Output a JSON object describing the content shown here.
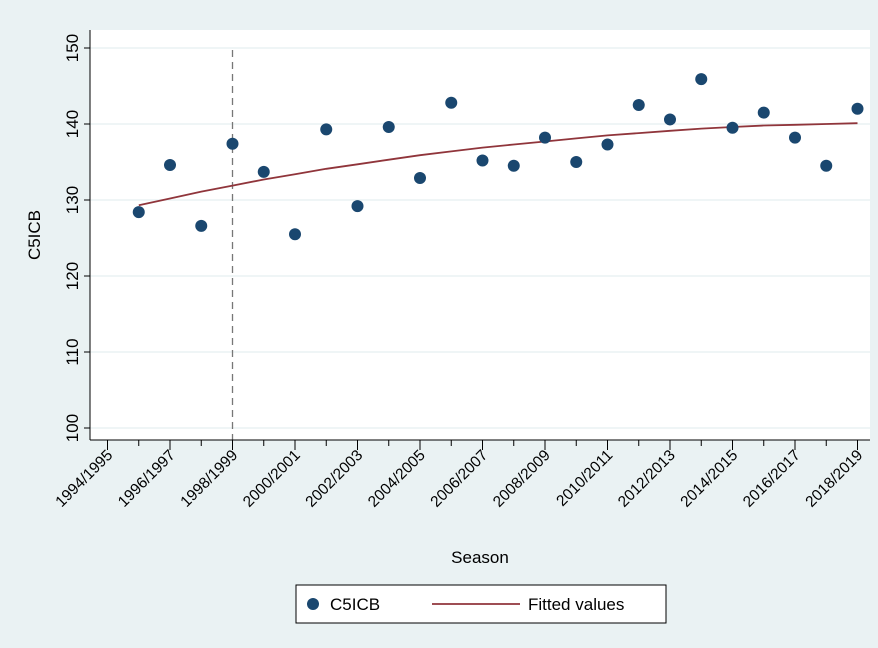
{
  "chart_data": {
    "type": "scatter",
    "title": "",
    "xlabel": "Season",
    "ylabel": "C5ICB",
    "xlim": [
      1994,
      2019
    ],
    "ylim": [
      100,
      150
    ],
    "x_ticks": [
      1994,
      1996,
      1998,
      2000,
      2002,
      2004,
      2006,
      2008,
      2010,
      2012,
      2014,
      2016,
      2018
    ],
    "x_tick_labels": [
      "1994/1995",
      "1996/1997",
      "1998/1999",
      "2000/2001",
      "2002/2003",
      "2004/2005",
      "2006/2007",
      "2008/2009",
      "2010/2011",
      "2012/2013",
      "2014/2015",
      "2016/2017",
      "2018/2019"
    ],
    "y_ticks": [
      100,
      110,
      120,
      130,
      140,
      150
    ],
    "y_tick_labels": [
      "100",
      "110",
      "120",
      "130",
      "140",
      "150"
    ],
    "grid": "horizontal",
    "reference_line": {
      "x": 1998,
      "style": "dashed"
    },
    "legend": {
      "placement": "bottom",
      "entries": [
        "C5ICB",
        "Fitted values"
      ]
    },
    "colors": {
      "outer_background": "#eaf2f3",
      "plot_background": "#ffffff",
      "grid": "#eaf2f3",
      "points": "#1a476f",
      "fit_line": "#90353b",
      "reference_line": "#777777"
    },
    "series": [
      {
        "name": "C5ICB",
        "kind": "scatter",
        "x": [
          1995,
          1996,
          1997,
          1998,
          1999,
          2000,
          2001,
          2002,
          2003,
          2004,
          2005,
          2006,
          2007,
          2008,
          2009,
          2010,
          2011,
          2012,
          2013,
          2014,
          2015,
          2016,
          2017,
          2018
        ],
        "y": [
          128.4,
          134.6,
          126.6,
          137.4,
          133.7,
          125.5,
          139.3,
          129.2,
          139.6,
          132.9,
          142.8,
          135.2,
          134.5,
          138.2,
          135.0,
          137.3,
          142.5,
          140.6,
          145.9,
          139.5,
          141.5,
          138.2,
          134.5,
          142.0
        ]
      },
      {
        "name": "Fitted values",
        "kind": "line",
        "x": [
          1995,
          1996,
          1997,
          1998,
          1999,
          2000,
          2001,
          2002,
          2003,
          2004,
          2005,
          2006,
          2007,
          2008,
          2009,
          2010,
          2011,
          2012,
          2013,
          2014,
          2015,
          2016,
          2017,
          2018
        ],
        "y": [
          129.3,
          130.2,
          131.1,
          131.9,
          132.7,
          133.4,
          134.1,
          134.7,
          135.3,
          135.9,
          136.4,
          136.9,
          137.3,
          137.7,
          138.1,
          138.5,
          138.8,
          139.1,
          139.4,
          139.6,
          139.8,
          139.9,
          140.0,
          140.1
        ]
      }
    ]
  }
}
